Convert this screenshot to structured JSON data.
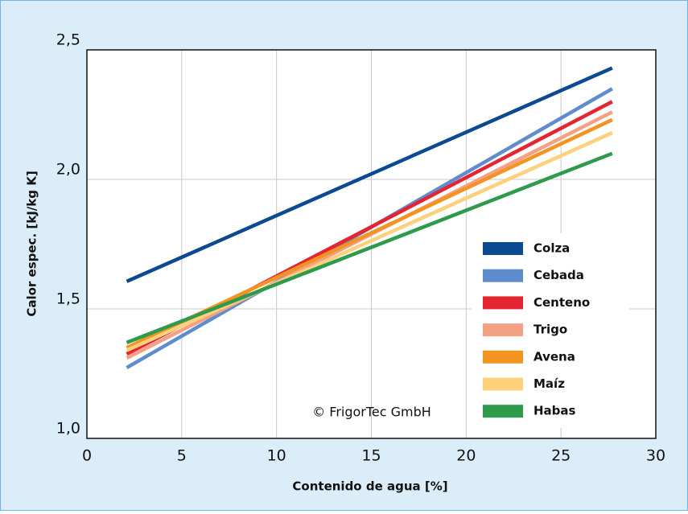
{
  "chart_data": {
    "type": "line",
    "xlabel": "Contenido de agua [%]",
    "ylabel": "Calor espec. [kJ/kg K]",
    "annotation": "© FrigorTec GmbH",
    "x": [
      2.1,
      27.7
    ],
    "series": [
      {
        "name": "Colza",
        "color": "#0b4a92",
        "values": [
          1.606,
          2.43
        ]
      },
      {
        "name": "Cebada",
        "color": "#5f8ccc",
        "values": [
          1.273,
          2.35
        ]
      },
      {
        "name": "Centeno",
        "color": "#e52432",
        "values": [
          1.326,
          2.3
        ]
      },
      {
        "name": "Trigo",
        "color": "#f4a084",
        "values": [
          1.31,
          2.26
        ]
      },
      {
        "name": "Avena",
        "color": "#f39321",
        "values": [
          1.35,
          2.23
        ]
      },
      {
        "name": "Maíz",
        "color": "#fdd07c",
        "values": [
          1.34,
          2.18
        ]
      },
      {
        "name": "Habas",
        "color": "#2e9a4c",
        "values": [
          1.37,
          2.1
        ]
      }
    ],
    "xlim": [
      0,
      30
    ],
    "xticks": [
      0,
      5,
      10,
      15,
      20,
      25,
      30
    ],
    "ylim": [
      1.0,
      2.5
    ],
    "yticks": [
      {
        "value": 1.0,
        "label": "1,0"
      },
      {
        "value": 1.5,
        "label": "1,5"
      },
      {
        "value": 2.0,
        "label": "2,0"
      },
      {
        "value": 2.5,
        "label": "2,5"
      }
    ],
    "grid": true,
    "legend": "lower right"
  }
}
